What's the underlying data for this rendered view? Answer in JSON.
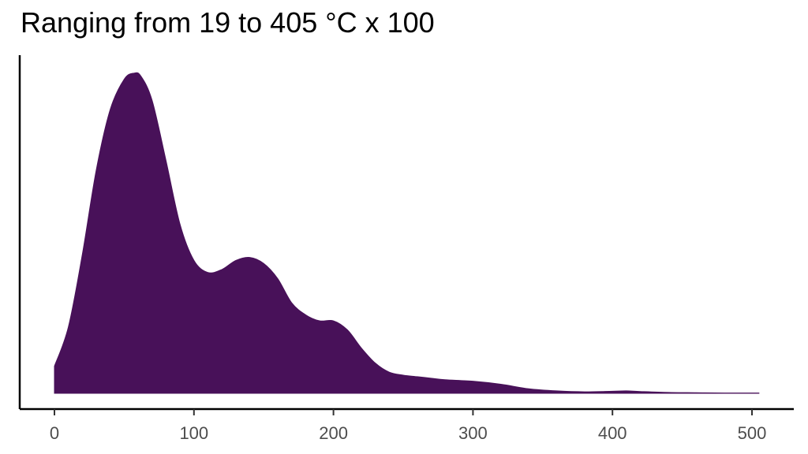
{
  "chart_data": {
    "type": "area",
    "title": "Ranging from 19 to 405 °C x 100",
    "xlabel": "",
    "ylabel": "",
    "xlim": [
      -5,
      535
    ],
    "ylim": [
      0,
      1.07
    ],
    "x_ticks": [
      {
        "value": 0,
        "label": "0"
      },
      {
        "value": 100,
        "label": "100"
      },
      {
        "value": 200,
        "label": "200"
      },
      {
        "value": 300,
        "label": "300"
      },
      {
        "value": 400,
        "label": "400"
      },
      {
        "value": 500,
        "label": "500"
      }
    ],
    "grid": false,
    "legend": "none",
    "fill_color": "#481159",
    "series": [
      {
        "x": [
          0,
          10,
          20,
          30,
          40,
          50,
          57,
          62,
          70,
          80,
          90,
          100,
          110,
          120,
          130,
          140,
          150,
          160,
          170,
          180,
          190,
          200,
          210,
          220,
          230,
          240,
          250,
          260,
          270,
          280,
          300,
          320,
          340,
          360,
          380,
          400,
          410,
          420,
          440,
          460,
          480,
          505
        ],
        "y": [
          0.09,
          0.22,
          0.46,
          0.74,
          0.94,
          1.04,
          1.06,
          1.05,
          0.97,
          0.77,
          0.56,
          0.44,
          0.4,
          0.41,
          0.44,
          0.45,
          0.43,
          0.38,
          0.3,
          0.26,
          0.24,
          0.24,
          0.21,
          0.15,
          0.1,
          0.07,
          0.06,
          0.055,
          0.05,
          0.045,
          0.04,
          0.03,
          0.015,
          0.008,
          0.005,
          0.007,
          0.008,
          0.006,
          0.003,
          0.002,
          0.001,
          0.001
        ]
      }
    ]
  }
}
